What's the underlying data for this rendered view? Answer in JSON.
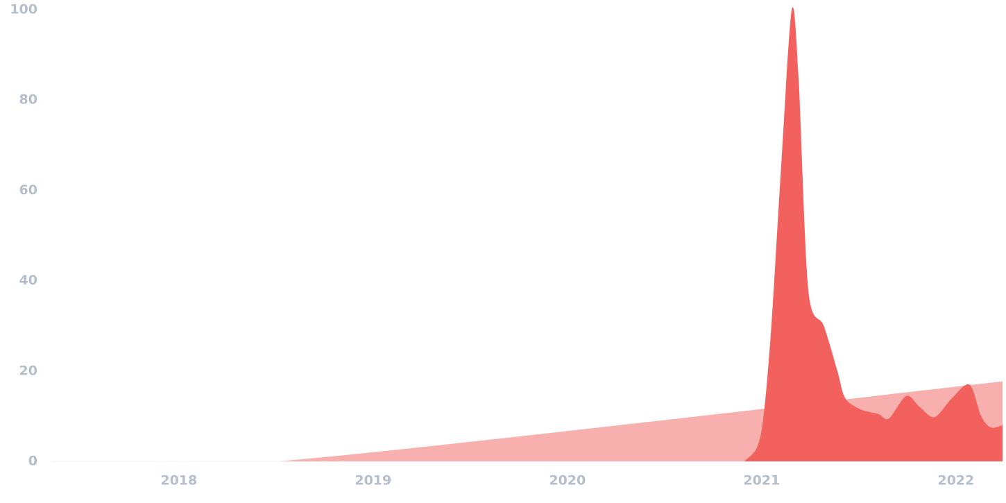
{
  "chart_data": {
    "type": "area",
    "series": [
      {
        "color": "#f7b0ae",
        "x": [
          2017.34,
          2018.51,
          2022.24
        ],
        "values": [
          0,
          0,
          17.7
        ]
      },
      {
        "color": "#f2615e",
        "x": [
          2020.91,
          2020.975,
          2021.01,
          2021.05,
          2021.1,
          2021.155,
          2021.19,
          2021.24,
          2021.32,
          2021.39,
          2021.43,
          2021.51,
          2021.6,
          2021.655,
          2021.745,
          2021.815,
          2021.89,
          2021.98,
          2022.07,
          2022.13,
          2022.18,
          2022.24
        ],
        "values": [
          0,
          3,
          10,
          30,
          65,
          100,
          85,
          38,
          30,
          20,
          14,
          11.5,
          10.5,
          9.5,
          14.5,
          12,
          9.8,
          14,
          17,
          10,
          7.5,
          8
        ]
      }
    ],
    "xlim": [
      2017.34,
      2022.24
    ],
    "xticks": [
      2018,
      2019,
      2020,
      2021,
      2022
    ],
    "ylim": [
      0,
      100
    ],
    "yticks": [
      0,
      20,
      40,
      60,
      80,
      100
    ]
  }
}
